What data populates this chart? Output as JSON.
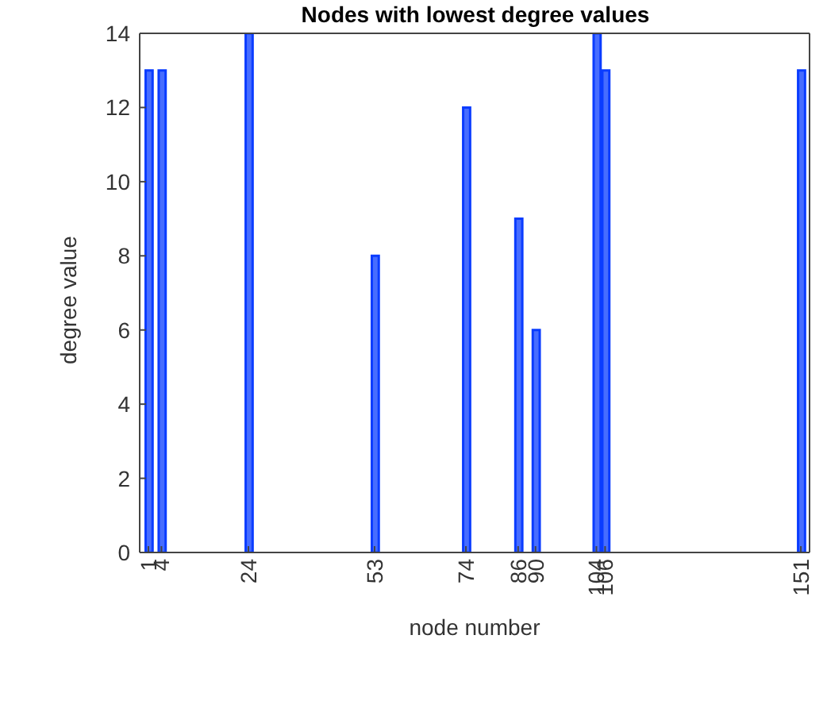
{
  "chart_data": {
    "type": "bar",
    "title": "Nodes with lowest degree values",
    "xlabel": "node number",
    "ylabel": "degree value",
    "x": [
      1,
      4,
      24,
      53,
      74,
      86,
      90,
      104,
      106,
      151
    ],
    "values": [
      13,
      13,
      14,
      8,
      12,
      9,
      6,
      14,
      13,
      13
    ],
    "color": "#0a3cff",
    "xlim": [
      -1,
      153
    ],
    "xticks": [
      1,
      4,
      24,
      53,
      74,
      86,
      90,
      104,
      106,
      151
    ],
    "ylim": [
      0,
      14
    ],
    "yticks": [
      0,
      2,
      4,
      6,
      8,
      10,
      12,
      14
    ],
    "grid": false,
    "legend": false
  }
}
